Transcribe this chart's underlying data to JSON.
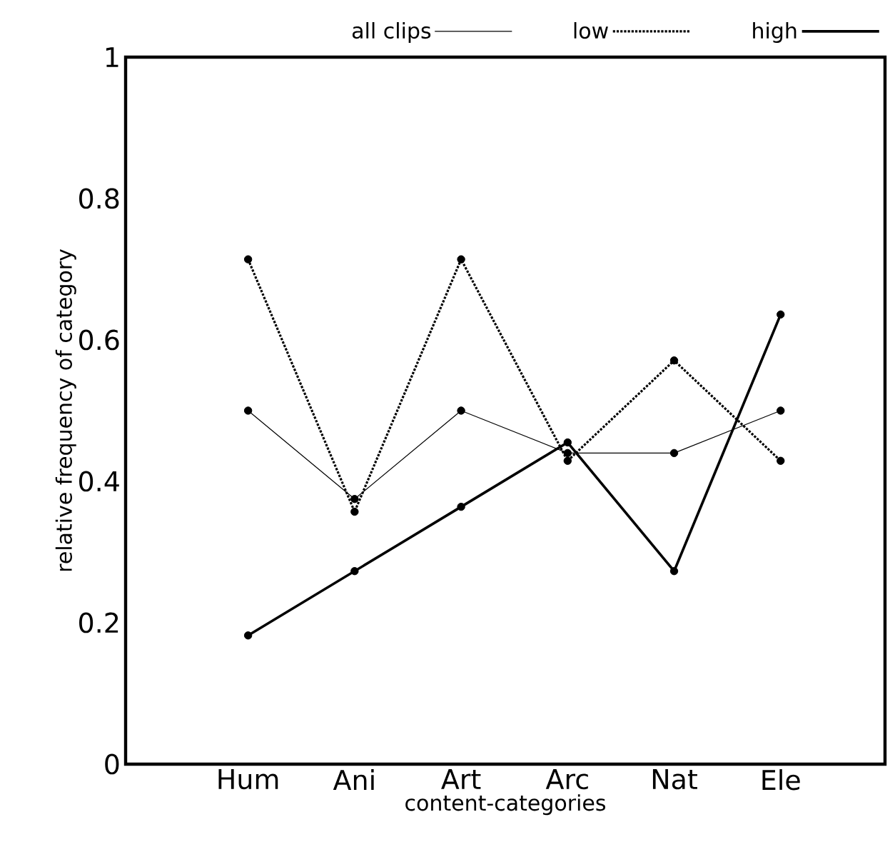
{
  "chart_data": {
    "type": "line",
    "xlabel": "content-categories",
    "ylabel": "relative frequency of category",
    "categories": [
      "Hum",
      "Ani",
      "Art",
      "Arc",
      "Nat",
      "Ele"
    ],
    "series": [
      {
        "name": "all clips",
        "color": "#000000",
        "line_style": "solid",
        "values": [
          0.5,
          0.375,
          0.5,
          0.44,
          0.44,
          0.5
        ]
      },
      {
        "name": "low",
        "color": "#000000",
        "line_style": "dotted",
        "values": [
          0.714,
          0.357,
          0.714,
          0.429,
          0.571,
          0.429
        ]
      },
      {
        "name": "high",
        "color": "#000000",
        "line_style": "solid",
        "values": [
          0.182,
          0.273,
          0.364,
          0.455,
          0.273,
          0.636
        ]
      }
    ],
    "ylim": [
      0,
      1
    ],
    "yticks": [
      0,
      0.2,
      0.4,
      0.6,
      0.8,
      1
    ],
    "grid": false,
    "legend": "top",
    "marker": "circle"
  }
}
